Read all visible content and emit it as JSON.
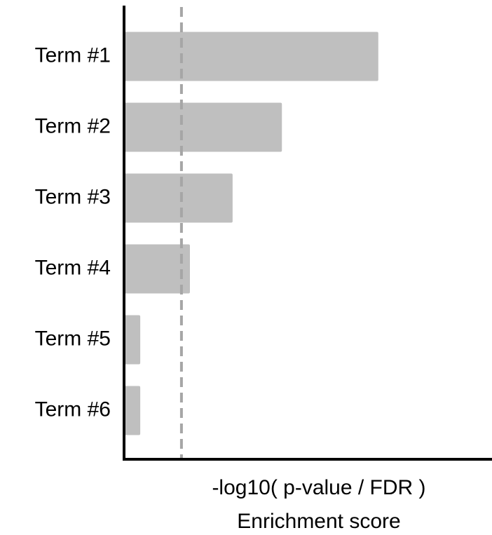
{
  "chart_data": {
    "type": "hbar",
    "categories": [
      "Term #1",
      "Term #2",
      "Term #3",
      "Term #4",
      "Term #5",
      "Term #6"
    ],
    "values": [
      69.1,
      42.9,
      29.5,
      17.9,
      4.4,
      4.4
    ],
    "color": "#bfbfbf",
    "xlim": [
      0,
      100
    ],
    "reference_line": {
      "value": 15.6,
      "color": "#a6a6a6",
      "style": "dashed"
    },
    "xlabel": [
      "-log10( p-value / FDR )",
      "Enrichment score"
    ]
  }
}
